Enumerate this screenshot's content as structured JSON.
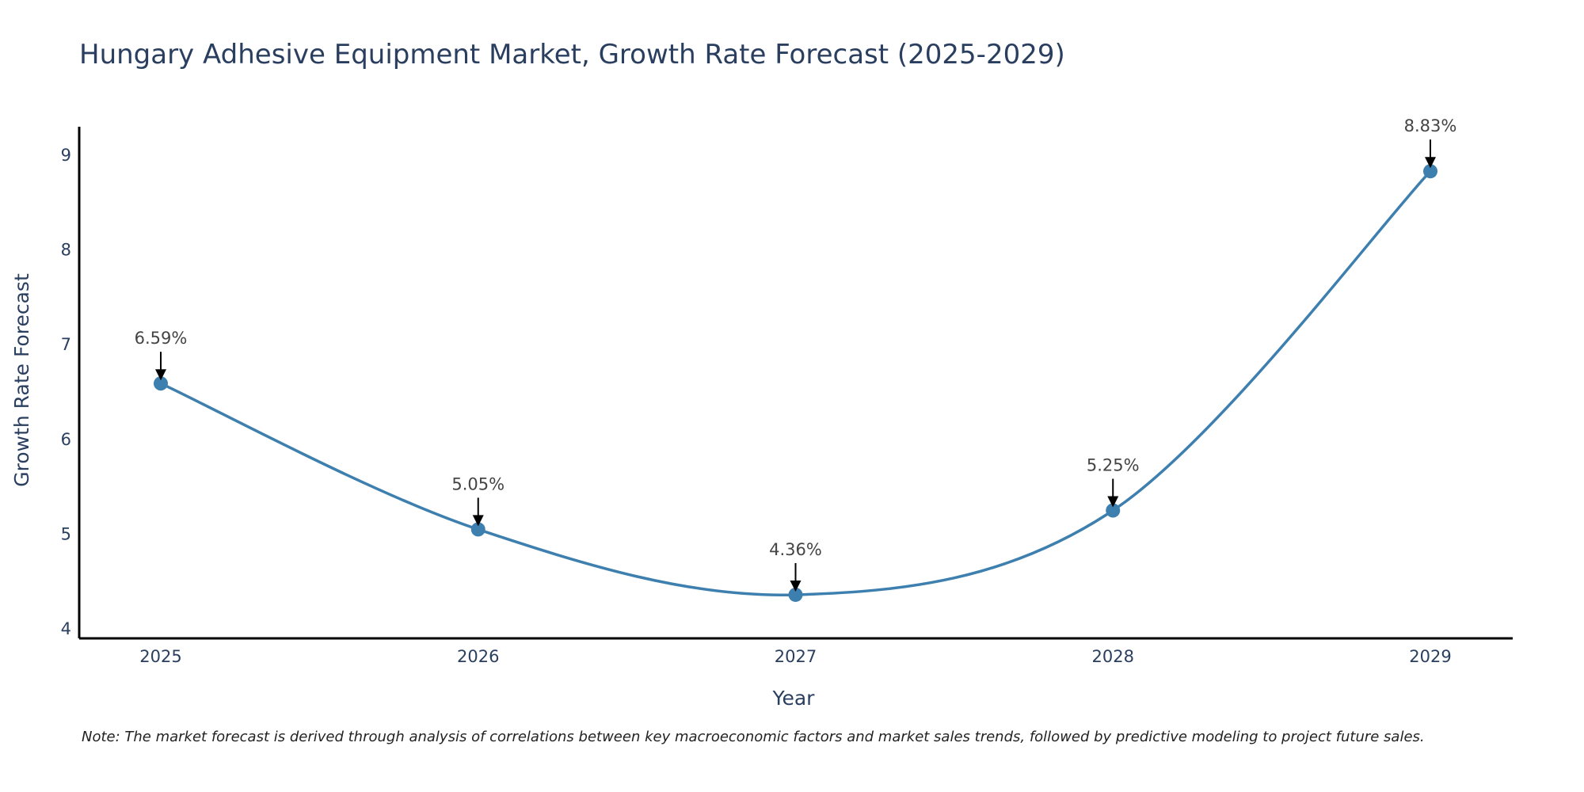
{
  "chart_data": {
    "type": "line",
    "title": "Hungary Adhesive Equipment Market, Growth Rate Forecast (2025-2029)",
    "xlabel": "Year",
    "ylabel": "Growth Rate Forecast",
    "categories": [
      "2025",
      "2026",
      "2027",
      "2028",
      "2029"
    ],
    "series": [
      {
        "name": "Growth Rate Forecast",
        "values": [
          6.59,
          5.05,
          4.36,
          5.25,
          8.83
        ],
        "labels": [
          "6.59%",
          "5.05%",
          "4.36%",
          "5.25%",
          "8.83%"
        ],
        "color": "#3d7fae"
      }
    ],
    "yticks": [
      4,
      5,
      6,
      7,
      8,
      9
    ],
    "ylim": [
      3.9,
      9.3
    ],
    "grid": false,
    "legend": "none",
    "line_shape": "spline"
  },
  "note": "Note: The market forecast is derived through analysis of correlations between key macroeconomic factors and market sales trends, followed by predictive modeling to project future sales."
}
